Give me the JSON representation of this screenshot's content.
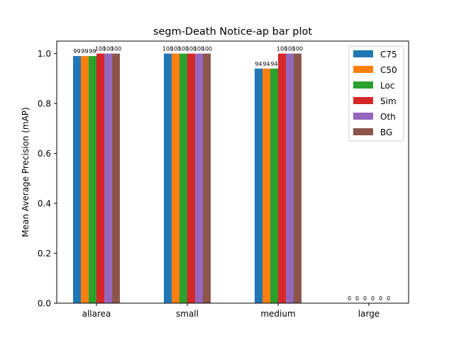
{
  "chart_data": {
    "type": "bar",
    "title": "segm-Death Notice-ap bar plot",
    "xlabel": "",
    "ylabel": "Mean Average Precision (mAP)",
    "ylim": [
      0,
      1.05
    ],
    "yticks": [
      0.0,
      0.2,
      0.4,
      0.6,
      0.8,
      1.0
    ],
    "ytick_labels": [
      "0.0",
      "0.2",
      "0.4",
      "0.6",
      "0.8",
      "1.0"
    ],
    "categories": [
      "allarea",
      "small",
      "medium",
      "large"
    ],
    "legend_position": "top-right",
    "grid": false,
    "series": [
      {
        "name": "C75",
        "color": "#1f77b4",
        "values": [
          0.99,
          1.0,
          0.94,
          0.0
        ],
        "labels": [
          "99",
          "100",
          "94",
          "0"
        ]
      },
      {
        "name": "C50",
        "color": "#ff7f0e",
        "values": [
          0.99,
          1.0,
          0.94,
          0.0
        ],
        "labels": [
          "99",
          "100",
          "94",
          "0"
        ]
      },
      {
        "name": "Loc",
        "color": "#2ca02c",
        "values": [
          0.99,
          1.0,
          0.94,
          0.0
        ],
        "labels": [
          "99",
          "100",
          "94",
          "0"
        ]
      },
      {
        "name": "Sim",
        "color": "#d62728",
        "values": [
          1.0,
          1.0,
          1.0,
          0.0
        ],
        "labels": [
          "100",
          "100",
          "100",
          "0"
        ]
      },
      {
        "name": "Oth",
        "color": "#9467bd",
        "values": [
          1.0,
          1.0,
          1.0,
          0.0
        ],
        "labels": [
          "100",
          "100",
          "100",
          "0"
        ]
      },
      {
        "name": "BG",
        "color": "#8c564b",
        "values": [
          1.0,
          1.0,
          1.0,
          0.0
        ],
        "labels": [
          "100",
          "100",
          "100",
          "0"
        ]
      }
    ]
  }
}
